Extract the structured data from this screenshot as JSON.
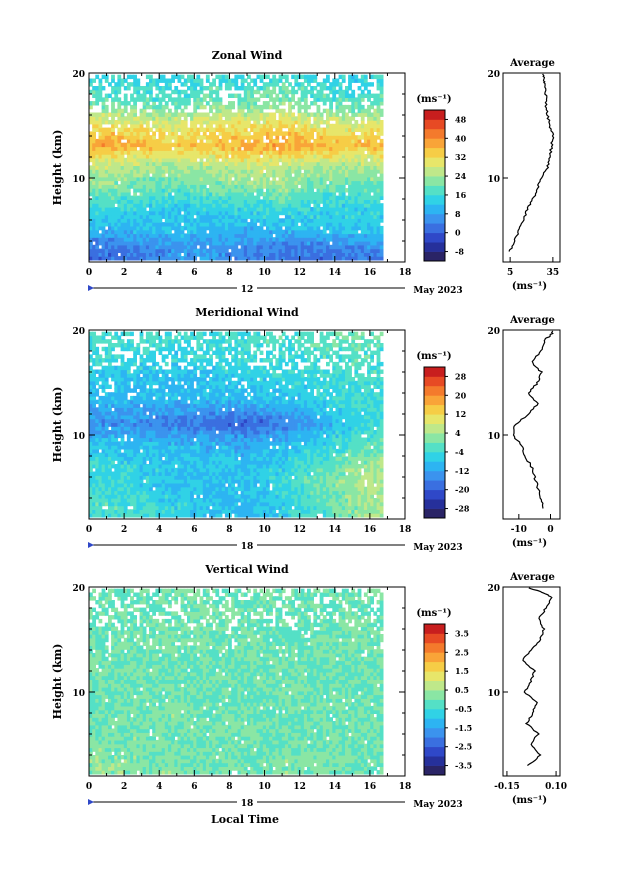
{
  "date_label": "May 2023",
  "xaxis_title": "Local Time",
  "yaxis_label": "Height (km)",
  "unit_label": "(ms⁻¹)",
  "avg_title": "Average",
  "panels": [
    {
      "id": "zonal",
      "title": "Zonal Wind",
      "day_label": "12",
      "colorbar": {
        "ticks": [
          "48",
          "40",
          "32",
          "24",
          "16",
          "8",
          "0",
          "-8"
        ],
        "tick_values": [
          48,
          40,
          32,
          24,
          16,
          8,
          0,
          -8
        ],
        "min": -12,
        "max": 52
      },
      "avg_xticks": [
        "5",
        "35"
      ],
      "avg_xlim": [
        0,
        40
      ]
    },
    {
      "id": "meridional",
      "title": "Meridional Wind",
      "day_label": "18",
      "colorbar": {
        "ticks": [
          "28",
          "20",
          "12",
          "4",
          "-4",
          "-12",
          "-20",
          "-28"
        ],
        "tick_values": [
          28,
          20,
          12,
          4,
          -4,
          -12,
          -20,
          -28
        ],
        "min": -32,
        "max": 32
      },
      "avg_xticks": [
        "-10",
        "0"
      ],
      "avg_xlim": [
        -15,
        3
      ]
    },
    {
      "id": "vertical",
      "title": "Vertical Wind",
      "day_label": "18",
      "colorbar": {
        "ticks": [
          "3.5",
          "2.5",
          "1.5",
          "0.5",
          "-0.5",
          "-1.5",
          "-2.5",
          "-3.5"
        ],
        "tick_values": [
          3.5,
          2.5,
          1.5,
          0.5,
          -0.5,
          -1.5,
          -2.5,
          -3.5
        ],
        "min": -4,
        "max": 4
      },
      "avg_xticks": [
        "-0.15",
        "0.10"
      ],
      "avg_xlim": [
        -0.17,
        0.12
      ]
    }
  ],
  "chart_data": [
    {
      "type": "heatmap",
      "title": "Zonal Wind",
      "xlabel": "",
      "ylabel": "Height (km)",
      "x_ticks": [
        "0",
        "2",
        "4",
        "6",
        "8",
        "10",
        "12",
        "14",
        "16",
        "18"
      ],
      "y_ticks": [
        "10",
        "20"
      ],
      "xlim": [
        0,
        18
      ],
      "ylim": [
        2,
        20
      ],
      "heights_km": [
        3,
        5,
        7,
        9,
        11,
        13,
        15,
        17,
        19
      ],
      "values": [
        [
          2,
          4,
          6,
          7,
          5,
          3,
          2,
          4,
          5
        ],
        [
          10,
          11,
          12,
          11,
          10,
          11,
          12,
          13,
          13
        ],
        [
          15,
          14,
          13,
          14,
          15,
          16,
          14,
          14,
          15
        ],
        [
          22,
          20,
          19,
          21,
          22,
          23,
          20,
          19,
          20
        ],
        [
          26,
          25,
          24,
          25,
          27,
          26,
          25,
          24,
          26
        ],
        [
          38,
          36,
          34,
          35,
          37,
          38,
          36,
          35,
          37
        ],
        [
          30,
          29,
          28,
          31,
          30,
          32,
          29,
          28,
          30
        ],
        [
          20,
          19,
          18,
          21,
          20,
          22,
          19,
          18,
          20
        ],
        [
          16,
          15,
          14,
          17,
          16,
          18,
          15,
          14,
          16
        ]
      ],
      "notes": "rows are heights (low to high), columns are local times 1..17 h"
    },
    {
      "type": "line",
      "title": "Average",
      "xlabel": "(ms⁻¹)",
      "ylabel": "",
      "xlim": [
        0,
        40
      ],
      "ylim": [
        2,
        20
      ],
      "x_ticks": [
        "5",
        "35"
      ],
      "y_ticks": [
        "10",
        "20"
      ],
      "series": [
        {
          "x": [
            5,
            8,
            11,
            14,
            17,
            21,
            24,
            27,
            31,
            33,
            34,
            35,
            33,
            31,
            30,
            30,
            29,
            29,
            28
          ],
          "y": [
            3,
            4,
            5,
            6,
            7,
            8,
            9,
            10,
            11,
            12,
            13,
            14,
            15,
            16,
            17,
            18,
            19,
            19.5,
            20
          ]
        }
      ]
    },
    {
      "type": "heatmap",
      "title": "Meridional Wind",
      "xlabel": "",
      "ylabel": "Height (km)",
      "x_ticks": [
        "0",
        "2",
        "4",
        "6",
        "8",
        "10",
        "12",
        "14",
        "16",
        "18"
      ],
      "y_ticks": [
        "10",
        "20"
      ],
      "xlim": [
        0,
        18
      ],
      "ylim": [
        2,
        20
      ],
      "heights_km": [
        3,
        5,
        7,
        9,
        11,
        13,
        15,
        17,
        19
      ],
      "values": [
        [
          -2,
          -4,
          -6,
          -8,
          -10,
          -6,
          -2,
          2,
          4
        ],
        [
          -4,
          -6,
          -8,
          -9,
          -8,
          -4,
          0,
          4,
          6
        ],
        [
          -5,
          -6,
          -7,
          -8,
          -8,
          -6,
          -2,
          2,
          4
        ],
        [
          -8,
          -9,
          -10,
          -10,
          -11,
          -9,
          -6,
          -2,
          0
        ],
        [
          -14,
          -15,
          -16,
          -18,
          -20,
          -17,
          -12,
          -6,
          -4
        ],
        [
          -9,
          -10,
          -10,
          -10,
          -9,
          -8,
          -6,
          -4,
          -4
        ],
        [
          -8,
          -8,
          -9,
          -8,
          -7,
          -6,
          -5,
          -4,
          -3
        ],
        [
          -4,
          -5,
          -6,
          -5,
          -4,
          -4,
          -3,
          -2,
          -2
        ],
        [
          -3,
          -3,
          -4,
          -4,
          -3,
          -2,
          -2,
          -1,
          -1
        ]
      ],
      "notes": "rows are heights (low to high), columns are local times 1..17 h"
    },
    {
      "type": "line",
      "title": "Average",
      "xlabel": "(ms⁻¹)",
      "ylabel": "",
      "xlim": [
        -15,
        3
      ],
      "ylim": [
        2,
        20
      ],
      "x_ticks": [
        "-10",
        "0"
      ],
      "y_ticks": [
        "10",
        "20"
      ],
      "series": [
        {
          "x": [
            -2,
            -3,
            -4,
            -5,
            -6,
            -8,
            -9,
            -12,
            -11,
            -7,
            -4,
            -7,
            -4,
            -3,
            -6,
            -3,
            -2,
            0,
            1
          ],
          "y": [
            3,
            4,
            5,
            6,
            7,
            8,
            9,
            10,
            11,
            12,
            13,
            14,
            15,
            16,
            17,
            18,
            19,
            19.5,
            20
          ]
        }
      ]
    },
    {
      "type": "heatmap",
      "title": "Vertical Wind",
      "xlabel": "Local Time",
      "ylabel": "Height (km)",
      "x_ticks": [
        "0",
        "2",
        "4",
        "6",
        "8",
        "10",
        "12",
        "14",
        "16",
        "18"
      ],
      "y_ticks": [
        "10",
        "20"
      ],
      "xlim": [
        0,
        18
      ],
      "ylim": [
        2,
        20
      ],
      "heights_km": [
        3,
        5,
        7,
        9,
        11,
        13,
        15,
        17,
        19
      ],
      "values": [
        [
          0.3,
          0.1,
          0.2,
          0.0,
          -0.1,
          0.2,
          0.1,
          0.0,
          -0.2
        ],
        [
          0.1,
          0.2,
          0.0,
          0.1,
          0.0,
          -0.1,
          0.1,
          0.0,
          0.1
        ],
        [
          0.0,
          0.1,
          0.2,
          0.0,
          0.1,
          0.0,
          -0.1,
          0.1,
          0.0
        ],
        [
          -0.1,
          0.0,
          0.1,
          0.0,
          -0.2,
          0.0,
          0.1,
          0.0,
          -0.1
        ],
        [
          0.0,
          -0.1,
          0.0,
          0.1,
          0.0,
          0.1,
          0.0,
          -0.1,
          0.0
        ],
        [
          0.1,
          0.0,
          0.0,
          -0.1,
          0.0,
          0.0,
          0.1,
          0.0,
          0.0
        ],
        [
          0.0,
          0.1,
          0.2,
          0.0,
          0.0,
          -0.1,
          0.0,
          0.1,
          0.0
        ],
        [
          -0.1,
          0.0,
          0.0,
          0.1,
          0.0,
          0.0,
          -0.1,
          0.0,
          0.0
        ],
        [
          0.0,
          0.0,
          0.1,
          0.0,
          -0.1,
          0.0,
          0.0,
          0.0,
          0.1
        ]
      ],
      "notes": "rows are heights (low to high), columns are local times 1..17 h"
    },
    {
      "type": "line",
      "title": "Average",
      "xlabel": "(ms⁻¹)",
      "ylabel": "",
      "xlim": [
        -0.17,
        0.12
      ],
      "ylim": [
        2,
        20
      ],
      "x_ticks": [
        "-0.15",
        "0.10"
      ],
      "y_ticks": [
        "10",
        "20"
      ],
      "series": [
        {
          "x": [
            -0.04,
            0.02,
            -0.03,
            0.01,
            -0.05,
            -0.02,
            0.0,
            -0.06,
            -0.03,
            -0.01,
            -0.07,
            -0.03,
            0.02,
            0.04,
            0.01,
            0.05,
            0.08,
            0.03,
            -0.05
          ],
          "y": [
            3,
            4,
            5,
            6,
            7,
            8,
            9,
            10,
            11,
            12,
            13,
            14,
            15,
            16,
            17,
            18,
            19,
            19.5,
            20
          ]
        }
      ]
    }
  ]
}
